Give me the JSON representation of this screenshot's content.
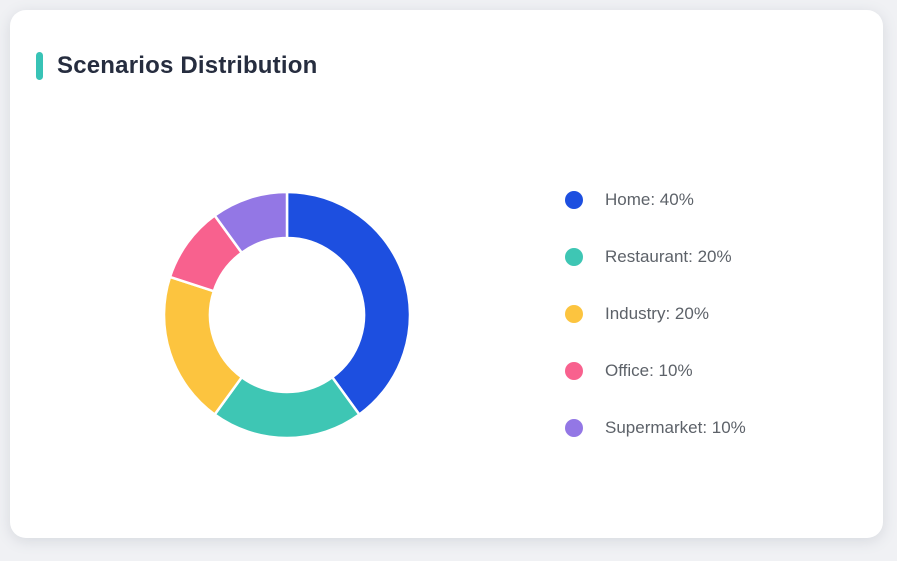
{
  "card": {
    "title": "Scenarios Distribution",
    "accent_color": "#38c3b6"
  },
  "chart_data": {
    "type": "pie",
    "subtype": "donut",
    "title": "Scenarios Distribution",
    "labels": [
      "Home",
      "Restaurant",
      "Industry",
      "Office",
      "Supermarket"
    ],
    "values": [
      40,
      20,
      20,
      10,
      10
    ],
    "unit": "%",
    "colors": [
      "#1d4fe0",
      "#3ec6b4",
      "#fcc43f",
      "#f8618e",
      "#9377e5"
    ],
    "legend_labels": [
      "Home: 40%",
      "Restaurant: 20%",
      "Industry: 20%",
      "Office: 10%",
      "Supermarket: 10%"
    ],
    "legend_position": "right",
    "start_angle_deg": 0,
    "direction": "clockwise",
    "inner_radius_ratio": 0.62
  },
  "colors": {
    "page_background": "#f0f1f4",
    "card_background": "#ffffff",
    "title_text": "#262d3f",
    "legend_text": "#5d6269",
    "segment_gap": "#ffffff"
  }
}
